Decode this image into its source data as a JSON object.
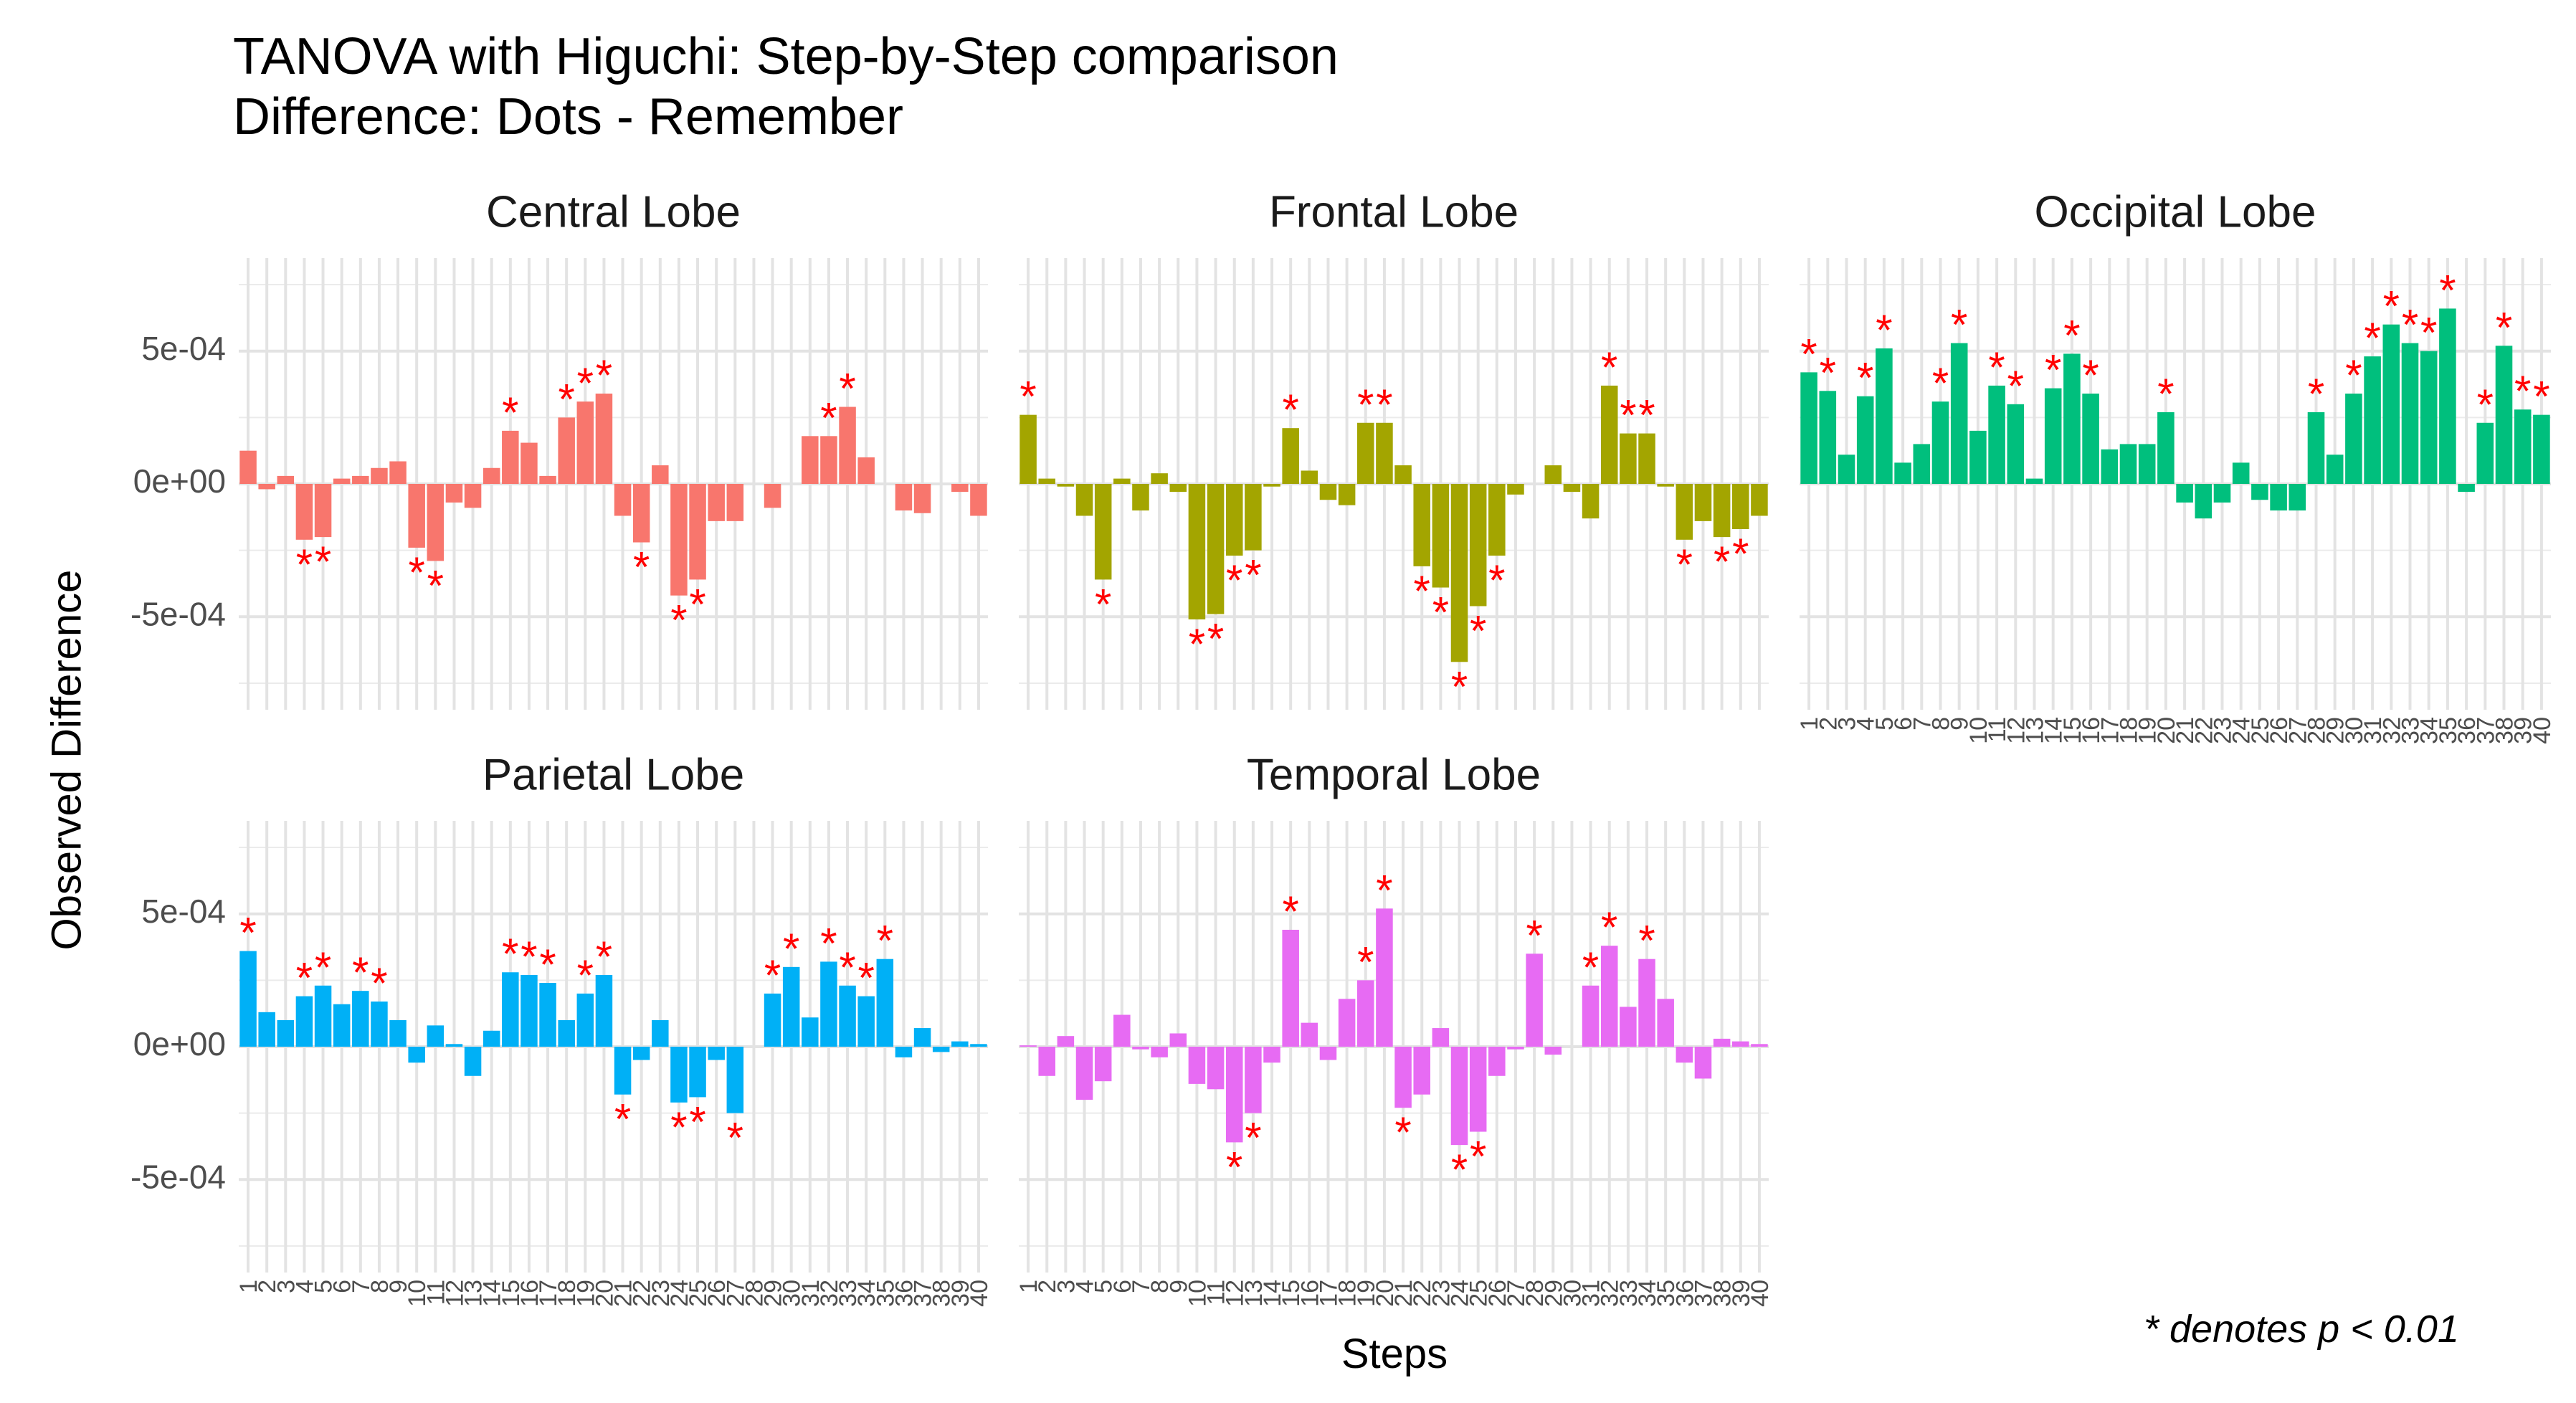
{
  "title": "TANOVA with Higuchi: Step-by-Step comparison",
  "subtitle": "Difference: Dots - Remember",
  "footnote": "* denotes p < 0.01",
  "chart_data": {
    "type": "bar",
    "facet": "wrap",
    "xlabel": "Steps",
    "ylabel": "Observed Difference",
    "ylim": [
      -0.00085,
      0.00085
    ],
    "yticks": [
      -0.0005,
      0,
      0.0005
    ],
    "ytick_labels": [
      "-5e-04",
      "0e+00",
      "5e-04"
    ],
    "x": [
      1,
      2,
      3,
      4,
      5,
      6,
      7,
      8,
      9,
      10,
      11,
      12,
      13,
      14,
      15,
      16,
      17,
      18,
      19,
      20,
      21,
      22,
      23,
      24,
      25,
      26,
      27,
      28,
      29,
      30,
      31,
      32,
      33,
      34,
      35,
      36,
      37,
      38,
      39,
      40
    ],
    "marker": "*",
    "marker_color": "#ff0000",
    "panels": [
      {
        "name": "Central Lobe",
        "color": "#F8766D",
        "values": [
          0.000125,
          -2e-05,
          3e-05,
          -0.00021,
          -0.0002,
          2e-05,
          3e-05,
          6e-05,
          8.5e-05,
          -0.00024,
          -0.00029,
          -7e-05,
          -9e-05,
          6e-05,
          0.0002,
          0.000155,
          3e-05,
          0.00025,
          0.00031,
          0.00034,
          -0.00012,
          -0.00022,
          7e-05,
          -0.00042,
          -0.00036,
          -0.00014,
          -0.00014,
          0,
          -9e-05,
          0,
          0.00018,
          0.00018,
          0.00029,
          0.0001,
          0,
          -0.0001,
          -0.00011,
          0,
          -3e-05,
          -0.00012
        ],
        "significant": [
          4,
          5,
          10,
          11,
          15,
          18,
          19,
          20,
          22,
          24,
          25,
          32,
          33
        ]
      },
      {
        "name": "Frontal Lobe",
        "color": "#A3A500",
        "values": [
          0.00026,
          2e-05,
          -1e-05,
          -0.00012,
          -0.00036,
          2e-05,
          -0.0001,
          4e-05,
          -3e-05,
          -0.00051,
          -0.00049,
          -0.00027,
          -0.00025,
          -1e-05,
          0.00021,
          5e-05,
          -6e-05,
          -8e-05,
          0.00023,
          0.00023,
          7e-05,
          -0.00031,
          -0.00039,
          -0.00067,
          -0.00046,
          -0.00027,
          -4e-05,
          0,
          7e-05,
          -3e-05,
          -0.00013,
          0.00037,
          0.00019,
          0.00019,
          -1e-05,
          -0.00021,
          -0.00014,
          -0.0002,
          -0.00017,
          -0.00012
        ],
        "significant": [
          1,
          5,
          10,
          11,
          12,
          13,
          15,
          19,
          20,
          22,
          23,
          24,
          25,
          26,
          32,
          33,
          34,
          36,
          38,
          39
        ]
      },
      {
        "name": "Occipital Lobe",
        "color": "#00BF7D",
        "values": [
          0.00042,
          0.00035,
          0.00011,
          0.00033,
          0.00051,
          8e-05,
          0.00015,
          0.00031,
          0.00053,
          0.0002,
          0.00037,
          0.0003,
          2e-05,
          0.00036,
          0.00049,
          0.00034,
          0.00013,
          0.00015,
          0.00015,
          0.00027,
          -7e-05,
          -0.00013,
          -7e-05,
          8e-05,
          -6e-05,
          -0.0001,
          -0.0001,
          0.00027,
          0.00011,
          0.00034,
          0.00048,
          0.0006,
          0.00053,
          0.0005,
          0.00066,
          -3e-05,
          0.00023,
          0.00052,
          0.00028,
          0.00026
        ],
        "significant": [
          1,
          2,
          4,
          5,
          8,
          9,
          11,
          12,
          14,
          15,
          16,
          20,
          28,
          30,
          31,
          32,
          33,
          34,
          35,
          37,
          38,
          39,
          40
        ]
      },
      {
        "name": "Parietal Lobe",
        "color": "#00B0F6",
        "values": [
          0.00036,
          0.00013,
          0.0001,
          0.00019,
          0.00023,
          0.00016,
          0.00021,
          0.00017,
          0.0001,
          -6e-05,
          8e-05,
          1e-05,
          -0.00011,
          6e-05,
          0.00028,
          0.00027,
          0.00024,
          0.0001,
          0.0002,
          0.00027,
          -0.00018,
          -5e-05,
          0.0001,
          -0.00021,
          -0.00019,
          -5e-05,
          -0.00025,
          0,
          0.0002,
          0.0003,
          0.00011,
          0.00032,
          0.00023,
          0.00019,
          0.00033,
          -4e-05,
          7e-05,
          -2e-05,
          2e-05,
          1e-05
        ],
        "significant": [
          1,
          4,
          5,
          7,
          8,
          15,
          16,
          17,
          19,
          20,
          21,
          24,
          25,
          27,
          29,
          30,
          32,
          33,
          34,
          35
        ]
      },
      {
        "name": "Temporal Lobe",
        "color": "#E76BF3",
        "values": [
          5e-06,
          -0.00011,
          4e-05,
          -0.0002,
          -0.00013,
          0.00012,
          -1e-05,
          -4e-05,
          5e-05,
          -0.00014,
          -0.00016,
          -0.00036,
          -0.00025,
          -6e-05,
          0.00044,
          9e-05,
          -5e-05,
          0.00018,
          0.00025,
          0.00052,
          -0.00023,
          -0.00018,
          7e-05,
          -0.00037,
          -0.00032,
          -0.00011,
          -1e-05,
          0.00035,
          -3e-05,
          0,
          0.00023,
          0.00038,
          0.00015,
          0.00033,
          0.00018,
          -6e-05,
          -0.00012,
          3e-05,
          2e-05,
          1e-05
        ],
        "significant": [
          12,
          13,
          15,
          19,
          20,
          21,
          24,
          25,
          28,
          31,
          32,
          34
        ]
      }
    ]
  }
}
